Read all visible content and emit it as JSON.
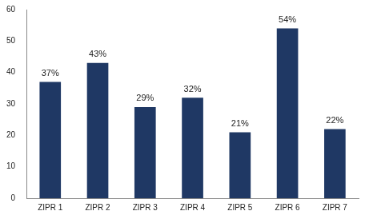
{
  "chart_data": {
    "type": "bar",
    "categories": [
      "ZIPR 1",
      "ZIPR 2",
      "ZIPR 3",
      "ZIPR 4",
      "ZIPR 5",
      "ZIPR 6",
      "ZIPR 7"
    ],
    "values": [
      37,
      43,
      29,
      32,
      21,
      54,
      22
    ],
    "value_labels": [
      "37%",
      "43%",
      "29%",
      "32%",
      "21%",
      "54%",
      "22%"
    ],
    "color": "#1f3864",
    "ylim": [
      0,
      60
    ],
    "yticks": [
      0,
      10,
      20,
      30,
      40,
      50,
      60
    ],
    "grid": false,
    "data_labels": true
  }
}
